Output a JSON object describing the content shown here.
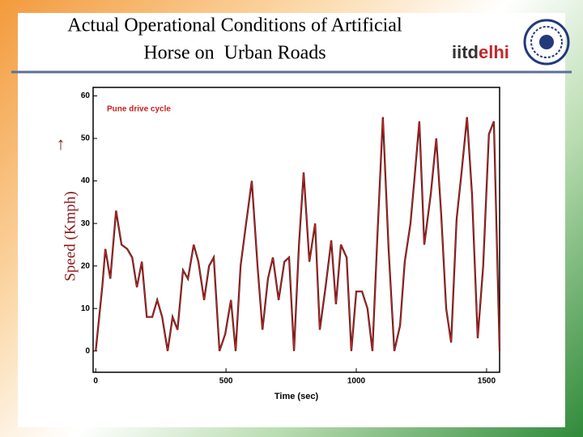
{
  "slide": {
    "title_lines": [
      "Actual Operational Conditions of Artificial",
      "Horse on  Urban Roads"
    ],
    "logo": [
      "iitd",
      "elhi"
    ]
  },
  "chart_data": {
    "type": "line",
    "legend_label": "Pune drive cycle",
    "x_label": "Time (sec)",
    "y_label": "Speed (Kmph)",
    "x": [
      0,
      25,
      37,
      56,
      78,
      99,
      121,
      140,
      158,
      177,
      196,
      217,
      236,
      255,
      276,
      295,
      314,
      335,
      354,
      376,
      394,
      416,
      435,
      453,
      475,
      497,
      519,
      537,
      556,
      575,
      599,
      621,
      640,
      661,
      680,
      702,
      724,
      742,
      761,
      780,
      798,
      820,
      842,
      860,
      882,
      904,
      922,
      941,
      963,
      981,
      1000,
      1022,
      1043,
      1062,
      1081,
      1102,
      1124,
      1146,
      1168,
      1186,
      1208,
      1224,
      1242,
      1261,
      1286,
      1307,
      1326,
      1345,
      1364,
      1385,
      1404,
      1425,
      1444,
      1466,
      1487,
      1509,
      1528,
      1550
    ],
    "series": [
      {
        "name": "Pune drive cycle",
        "color": "#c8201e",
        "values": [
          0,
          15,
          24,
          17,
          33,
          25,
          24,
          22,
          15,
          21,
          8,
          8,
          12,
          8,
          0,
          8,
          5,
          19,
          17,
          25,
          21,
          12,
          20,
          22,
          0,
          4,
          12,
          0,
          20,
          29,
          40,
          20,
          5,
          17,
          22,
          12,
          21,
          22,
          0,
          25,
          42,
          21,
          30,
          5,
          15,
          26,
          11,
          25,
          22,
          0,
          14,
          14,
          10,
          0,
          27,
          55,
          24,
          0,
          6,
          21,
          30,
          41,
          54,
          25,
          37,
          50,
          32,
          10,
          2,
          31,
          42,
          55,
          37,
          3,
          20,
          51,
          54,
          0
        ]
      }
    ],
    "xlim": [
      -10,
      1550
    ],
    "ylim": [
      -5,
      62
    ],
    "xticks": [
      0,
      500,
      1000,
      1500
    ],
    "yticks": [
      0,
      10,
      20,
      30,
      40,
      50,
      60
    ]
  }
}
